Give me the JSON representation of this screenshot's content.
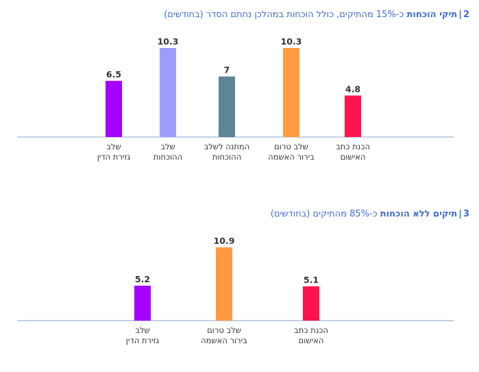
{
  "chart_data": [
    {
      "type": "bar",
      "title_number": "2",
      "title_separator": "|",
      "title_bold": "תיקי הוכחות",
      "title_rest": "כ‑15% מהתיקים, כולל הוכחות במהלכן נחתם הסדר (בחודשים)",
      "categories": [
        [
          "הכנת כתב",
          "האישום"
        ],
        [
          "שלב טרום",
          "בירור האשמה"
        ],
        [
          "המתנה לשלב",
          "ההוכחות"
        ],
        [
          "שלב",
          "ההוכחות"
        ],
        [
          "שלב",
          "גזירת הדין"
        ]
      ],
      "values": [
        4.8,
        10.3,
        7,
        10.3,
        6.5
      ],
      "value_labels": [
        "4.8",
        "10.3",
        "7",
        "10.3",
        "6.5"
      ],
      "colors": [
        "#ff144d",
        "#ff9a40",
        "#5f8496",
        "#a09cff",
        "#a300ff"
      ],
      "ylim": [
        0,
        10.3
      ],
      "xlabel": "",
      "ylabel": ""
    },
    {
      "type": "bar",
      "title_number": "3",
      "title_separator": "|",
      "title_bold": "תיקים ללא הוכחות",
      "title_rest": "כ‑85% מהתיקים (בחודשים)",
      "categories": [
        [
          "הכנת כתב",
          "האישום"
        ],
        [
          "שלב טרום",
          "בירור האשמה"
        ],
        [
          "שלב",
          "גזירת הדין"
        ]
      ],
      "values": [
        5.1,
        10.9,
        5.2
      ],
      "value_labels": [
        "5.1",
        "10.9",
        "5.2"
      ],
      "colors": [
        "#ff144d",
        "#ff9a40",
        "#a300ff"
      ],
      "ylim": [
        0,
        10.9
      ],
      "xlabel": "",
      "ylabel": ""
    }
  ]
}
